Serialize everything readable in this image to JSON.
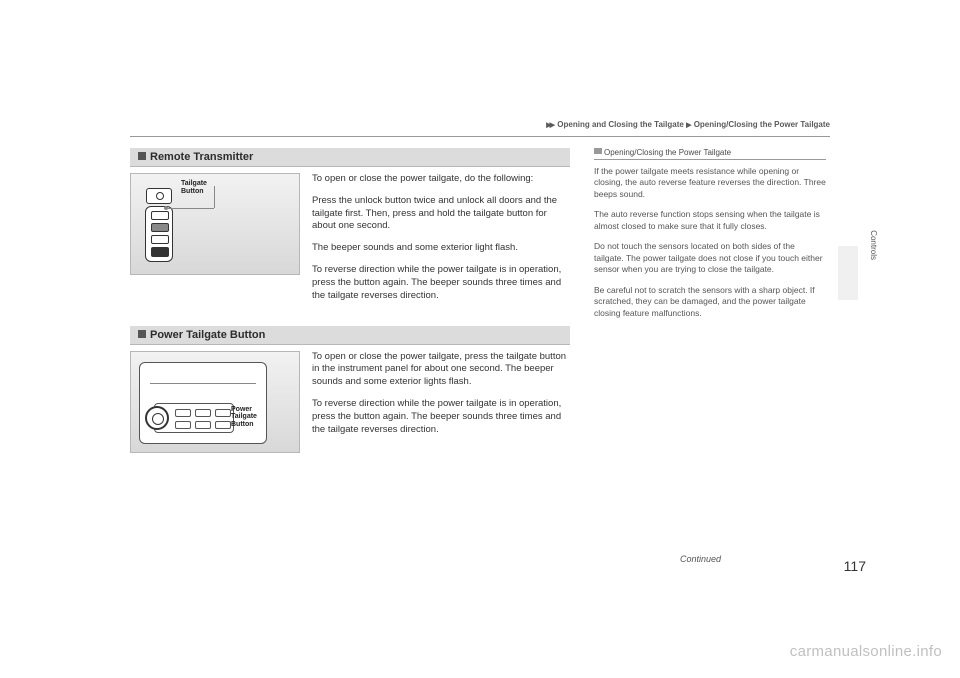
{
  "breadcrumb": {
    "arrows": "▶▶",
    "part1": "Opening and Closing the Tailgate",
    "sep": "▶",
    "part2": "Opening/Closing the Power Tailgate"
  },
  "section1": {
    "title": "Remote Transmitter",
    "callout_l1": "Tailgate",
    "callout_l2": "Button",
    "p1": "To open or close the power tailgate, do the following:",
    "p2": "Press the unlock button twice and unlock all doors and the tailgate first. Then, press and hold the tailgate button for about one second.",
    "p3": "The beeper sounds and some exterior light flash.",
    "p4": "To reverse direction while the power tailgate is in operation, press the button again. The beeper sounds three times and the tailgate reverses direction."
  },
  "section2": {
    "title": "Power Tailgate Button",
    "callout_l1": "Power",
    "callout_l2": "Tailgate",
    "callout_l3": "Button",
    "p1": "To open or close the power tailgate, press the tailgate button in the instrument panel for about one second. The beeper sounds and some exterior lights flash.",
    "p2": "To reverse direction while the power tailgate is in operation, press the button again. The beeper sounds three times and the tailgate reverses direction."
  },
  "sidebar": {
    "heading": "Opening/Closing the Power Tailgate",
    "p1": "If the power tailgate meets resistance while opening or closing, the auto reverse feature reverses the direction. Three beeps sound.",
    "p2": "The auto reverse function stops sensing when the tailgate is almost closed to make sure that it fully closes.",
    "p3": "Do not touch the sensors located on both sides of the tailgate. The power tailgate does not close if you touch either sensor when you are trying to close the tailgate.",
    "p4": "Be careful not to scratch the sensors with a sharp object. If scratched, they can be damaged, and the power tailgate closing feature malfunctions."
  },
  "footer": {
    "continued": "Continued",
    "page": "117",
    "tab": "Controls"
  },
  "watermark": "carmanualsonline.info"
}
